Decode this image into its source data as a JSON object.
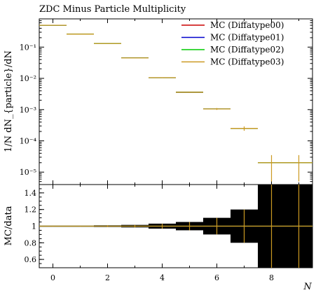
{
  "chart_data": {
    "type": "line",
    "title": "ZDC Minus Particle Multiplicity",
    "xlabel": "N",
    "ylabel": "1/N dN_{particle}/dN",
    "ratio_ylabel": "MC/data",
    "xlim": [
      -0.5,
      9.5
    ],
    "ylim": [
      4e-06,
      0.8
    ],
    "yscale": "log",
    "ratio_ylim": [
      0.5,
      1.5
    ],
    "x_ticks": [
      "0",
      "2",
      "4",
      "6",
      "8"
    ],
    "y_ticks": [
      "10⁻¹",
      "10⁻²",
      "10⁻³",
      "10⁻⁴",
      "10⁻⁵"
    ],
    "ratio_ticks": [
      "0.6",
      "0.8",
      "1",
      "1.2",
      "1.4"
    ],
    "legend_position": "top-right",
    "bins": [
      [
        -0.5,
        0.5
      ],
      [
        0.5,
        1.5
      ],
      [
        1.5,
        2.5
      ],
      [
        2.5,
        3.5
      ],
      [
        3.5,
        4.5
      ],
      [
        4.5,
        5.5
      ],
      [
        5.5,
        6.5
      ],
      [
        6.5,
        7.5
      ],
      [
        7.5,
        8.5
      ],
      [
        8.5,
        9.5
      ]
    ],
    "data": {
      "values": [
        0.5,
        0.26,
        0.13,
        0.045,
        0.0105,
        0.0036,
        0.00105,
        0.00025,
        2e-05,
        2e-05
      ],
      "errors": [
        0.004,
        0.002,
        0.0015,
        0.0006,
        0.0003,
        0.00012,
        7e-05,
        4e-05,
        1.5e-05,
        1.5e-05
      ]
    },
    "series": [
      {
        "name": "MC (Diffatype00)",
        "color": "#cc0000",
        "values": [
          0.5,
          0.26,
          0.13,
          0.045,
          0.0105,
          0.0036,
          0.00105,
          0.00025,
          2e-05,
          2e-05
        ],
        "ratio": [
          1,
          1,
          1,
          1,
          1,
          1,
          1,
          1,
          1,
          1
        ]
      },
      {
        "name": "MC (Diffatype01)",
        "color": "#0000cc",
        "values": [
          0.5,
          0.26,
          0.13,
          0.045,
          0.0105,
          0.0036,
          0.00105,
          0.00025,
          2e-05,
          2e-05
        ],
        "ratio": [
          1,
          1,
          1,
          1,
          1,
          1,
          1,
          1,
          1,
          1
        ]
      },
      {
        "name": "MC (Diffatype02)",
        "color": "#00cc00",
        "values": [
          0.5,
          0.26,
          0.13,
          0.045,
          0.0105,
          0.0036,
          0.00105,
          0.00025,
          2e-05,
          2e-05
        ],
        "ratio": [
          1,
          1,
          1,
          1,
          1,
          1,
          1,
          1,
          1,
          1
        ]
      },
      {
        "name": "MC (Diffatype03)",
        "color": "#cc9922",
        "values": [
          0.5,
          0.26,
          0.13,
          0.045,
          0.0105,
          0.0036,
          0.00105,
          0.00025,
          2e-05,
          2e-05
        ],
        "ratio": [
          1,
          1,
          1,
          1,
          1,
          1,
          1,
          1,
          1,
          1
        ]
      }
    ],
    "ratio_band_halfwidth": [
      0.005,
      0.005,
      0.01,
      0.015,
      0.03,
      0.05,
      0.1,
      0.2,
      0.75,
      0.75
    ]
  }
}
